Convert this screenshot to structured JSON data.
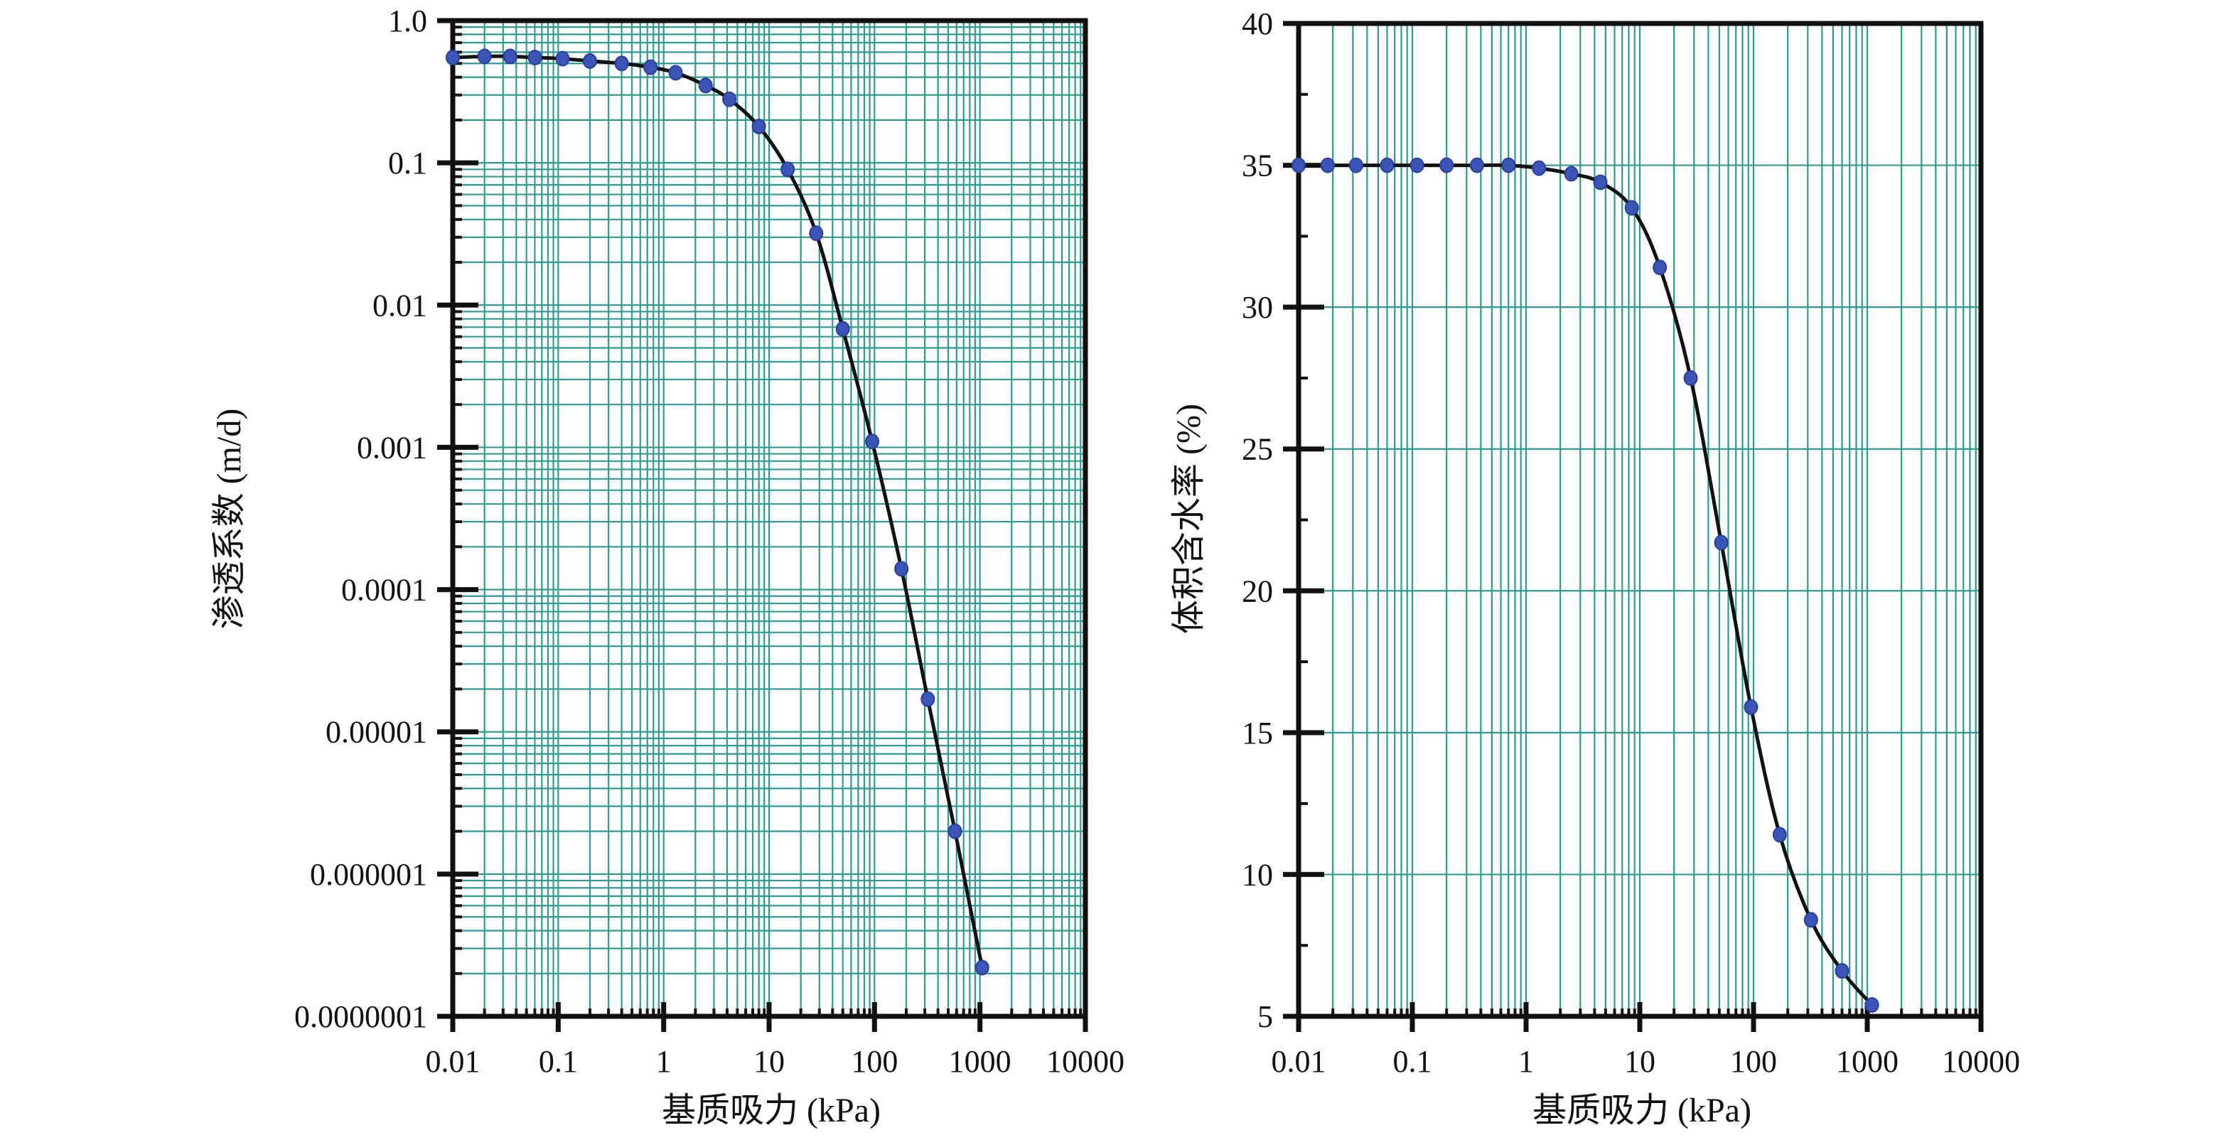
{
  "chart_data": [
    {
      "type": "line",
      "xlabel": "基质吸力 (kPa)",
      "ylabel": "渗透系数 (m/d)",
      "x_scale": "log",
      "y_scale": "log",
      "xlim": [
        0.01,
        10000
      ],
      "ylim": [
        1e-07,
        1.0
      ],
      "grid": true,
      "x_tick_values": [
        0.01,
        0.1,
        1,
        10,
        100,
        1000,
        10000
      ],
      "x_tick_labels": [
        "0.01",
        "0.1",
        "1",
        "10",
        "100",
        "1000",
        "10000"
      ],
      "y_tick_values": [
        1e-07,
        1e-06,
        1e-05,
        0.0001,
        0.001,
        0.01,
        0.1,
        1.0
      ],
      "y_tick_labels": [
        "0.0000001",
        "0.000001",
        "0.00001",
        "0.0001",
        "0.001",
        "0.01",
        "0.1",
        "1.0"
      ],
      "colors": {
        "curve": "#111111",
        "points": "#3a55b5",
        "grid": "#2f9a93"
      },
      "series": [
        {
          "x": [
            0.01,
            0.02,
            0.035,
            0.06,
            0.11,
            0.2,
            0.4,
            0.75,
            1.3,
            2.5,
            4.2,
            8,
            15,
            28,
            50,
            95,
            180,
            320,
            580,
            1050
          ],
          "y": [
            0.55,
            0.56,
            0.56,
            0.55,
            0.54,
            0.52,
            0.5,
            0.47,
            0.43,
            0.35,
            0.28,
            0.18,
            0.09,
            0.032,
            0.0068,
            0.0011,
            0.00014,
            1.7e-05,
            2e-06,
            2.2e-07
          ]
        }
      ]
    },
    {
      "type": "line",
      "xlabel": "基质吸力 (kPa)",
      "ylabel": "体积含水率 (%)",
      "x_scale": "log",
      "y_scale": "linear",
      "xlim": [
        0.01,
        10000
      ],
      "ylim": [
        5,
        40
      ],
      "grid": true,
      "x_tick_values": [
        0.01,
        0.1,
        1,
        10,
        100,
        1000,
        10000
      ],
      "x_tick_labels": [
        "0.01",
        "0.1",
        "1",
        "10",
        "100",
        "1000",
        "10000"
      ],
      "y_tick_values": [
        5,
        10,
        15,
        20,
        25,
        30,
        35,
        40
      ],
      "y_tick_labels": [
        "5",
        "10",
        "15",
        "20",
        "25",
        "30",
        "35",
        "40"
      ],
      "colors": {
        "curve": "#111111",
        "points": "#3a55b5",
        "grid": "#2f9a93"
      },
      "series": [
        {
          "x": [
            0.01,
            0.018,
            0.032,
            0.06,
            0.11,
            0.2,
            0.37,
            0.7,
            1.3,
            2.5,
            4.5,
            8.5,
            15,
            28,
            52,
            95,
            170,
            320,
            600,
            1100
          ],
          "y": [
            35.0,
            35.0,
            35.0,
            35.0,
            35.0,
            35.0,
            35.0,
            35.0,
            34.9,
            34.7,
            34.4,
            33.5,
            31.4,
            27.5,
            21.7,
            15.9,
            11.4,
            8.4,
            6.6,
            5.4
          ]
        }
      ]
    }
  ]
}
